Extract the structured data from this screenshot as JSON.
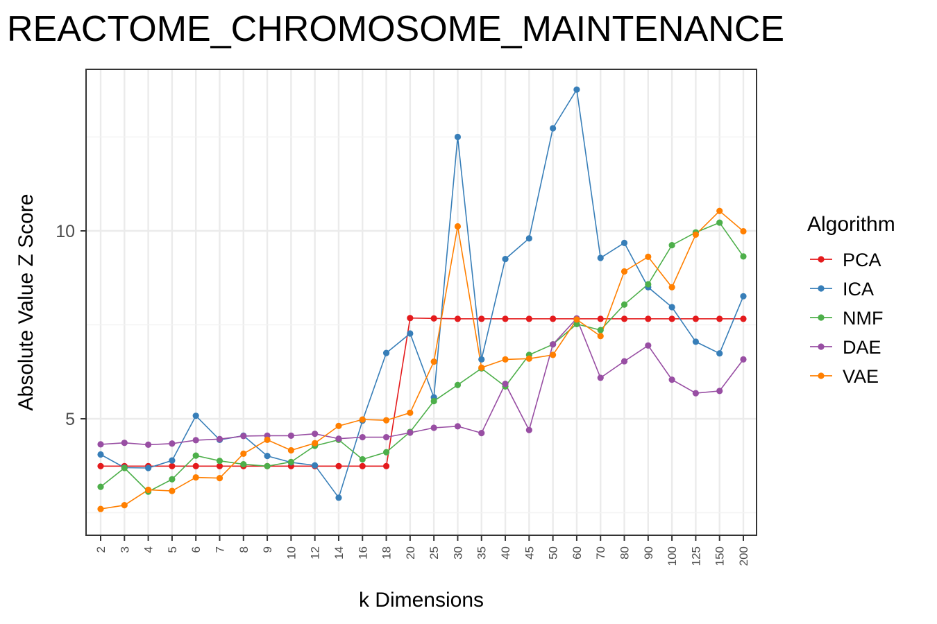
{
  "chart_data": {
    "type": "line",
    "title": "REACTOME_CHROMOSOME_MAINTENANCE",
    "xlabel": "k Dimensions",
    "ylabel": "Absolute Value Z Score",
    "categories": [
      "2",
      "3",
      "4",
      "5",
      "6",
      "7",
      "8",
      "9",
      "10",
      "12",
      "14",
      "16",
      "18",
      "20",
      "25",
      "30",
      "35",
      "40",
      "45",
      "50",
      "60",
      "70",
      "80",
      "90",
      "100",
      "125",
      "150",
      "200"
    ],
    "ylim": [
      2.6,
      14.0
    ],
    "yticks": [
      5,
      10
    ],
    "grid": true,
    "legend": {
      "title": "Algorithm",
      "placement": "right"
    },
    "series": [
      {
        "name": "PCA",
        "color": "#E41A1C",
        "values": [
          3.74,
          3.74,
          3.74,
          3.74,
          3.74,
          3.74,
          3.74,
          3.74,
          3.74,
          3.74,
          3.74,
          3.74,
          3.74,
          7.68,
          7.67,
          7.66,
          7.66,
          7.66,
          7.66,
          7.66,
          7.66,
          7.66,
          7.66,
          7.66,
          7.66,
          7.66,
          7.66,
          7.66
        ]
      },
      {
        "name": "ICA",
        "color": "#377EB8",
        "values": [
          4.05,
          3.7,
          3.69,
          3.89,
          5.08,
          4.44,
          4.55,
          4.01,
          3.84,
          3.76,
          2.9,
          4.95,
          6.75,
          7.27,
          5.57,
          12.5,
          6.58,
          9.25,
          9.8,
          12.73,
          13.76,
          9.28,
          9.68,
          8.5,
          7.97,
          7.05,
          6.74,
          8.26
        ]
      },
      {
        "name": "NMF",
        "color": "#4DAF4A",
        "values": [
          3.19,
          3.69,
          3.06,
          3.39,
          4.02,
          3.88,
          3.79,
          3.74,
          3.85,
          4.28,
          4.44,
          3.92,
          4.11,
          4.65,
          5.47,
          5.9,
          6.34,
          5.86,
          6.7,
          6.98,
          7.52,
          7.36,
          8.04,
          8.58,
          9.62,
          9.96,
          10.22,
          9.32
        ]
      },
      {
        "name": "DAE",
        "color": "#984EA3",
        "values": [
          4.32,
          4.36,
          4.31,
          4.34,
          4.43,
          4.46,
          4.54,
          4.55,
          4.55,
          4.6,
          4.47,
          4.51,
          4.51,
          4.63,
          4.76,
          4.8,
          4.62,
          5.93,
          4.7,
          6.98,
          7.67,
          6.09,
          6.53,
          6.95,
          6.04,
          5.68,
          5.74,
          6.58
        ]
      },
      {
        "name": "VAE",
        "color": "#FF7F00",
        "values": [
          2.6,
          2.7,
          3.11,
          3.08,
          3.44,
          3.42,
          4.07,
          4.44,
          4.16,
          4.35,
          4.81,
          4.98,
          4.96,
          5.16,
          6.52,
          10.12,
          6.36,
          6.58,
          6.6,
          6.7,
          7.64,
          7.2,
          8.92,
          9.31,
          8.5,
          9.9,
          10.53,
          9.99
        ]
      }
    ]
  }
}
